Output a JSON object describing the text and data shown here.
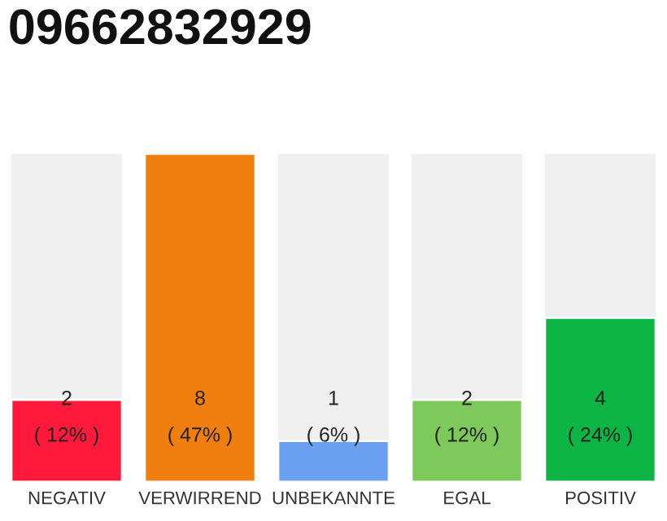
{
  "chart_data": {
    "type": "bar",
    "title": "09662832929",
    "categories": [
      "NEGATIV",
      "VERWIRREND",
      "UNBEKANNTE",
      "EGAL",
      "POSITIV"
    ],
    "values": [
      2,
      8,
      1,
      2,
      4
    ],
    "colors": [
      "#ff1a3c",
      "#f07f0f",
      "#6aa0ef",
      "#7ec95c",
      "#0db544"
    ],
    "value_labels": [
      "2\n( 12% )",
      "8\n( 47% )",
      "1\n( 6% )",
      "2\n( 12% )",
      "4\n( 24% )"
    ],
    "grid": false,
    "legend": false
  }
}
